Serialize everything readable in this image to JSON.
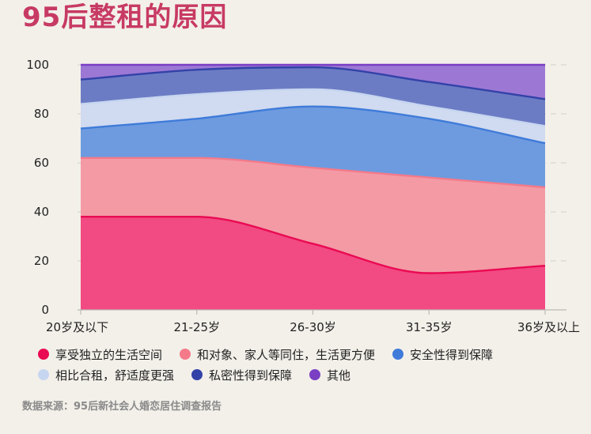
{
  "title": "95后整租的原因",
  "source": "数据来源：95后新社会人婚恋居住调查报告",
  "chart_data": {
    "type": "area",
    "stacked": true,
    "categories": [
      "20岁及以下",
      "21-25岁",
      "26-30岁",
      "31-35岁",
      "36岁及以上"
    ],
    "ylim": [
      0,
      100
    ],
    "yticks": [
      0,
      20,
      40,
      60,
      80,
      100
    ],
    "grid": true,
    "legend_position": "bottom",
    "series": [
      {
        "name": "享受独立的生活空间",
        "values": [
          38,
          38,
          27,
          15,
          18
        ],
        "color": "#ea0a53",
        "fill": "#f24a82"
      },
      {
        "name": "和对象、家人等同住，生活更方便",
        "values": [
          24,
          24,
          31,
          39,
          32
        ],
        "color": "#f47a8a",
        "fill": "#f39aa5"
      },
      {
        "name": "安全性得到保障",
        "values": [
          12,
          16,
          25,
          24,
          18
        ],
        "color": "#3f7bd9",
        "fill": "#6e9bdf"
      },
      {
        "name": "相比合租，舒适度更强",
        "values": [
          10,
          10,
          7,
          5,
          7
        ],
        "color": "#c7d6f0",
        "fill": "#d0daf0"
      },
      {
        "name": "私密性得到保障",
        "values": [
          10,
          10,
          9,
          10,
          11
        ],
        "color": "#3342a8",
        "fill": "#6c7cc4"
      },
      {
        "name": "其他",
        "values": [
          6,
          2,
          1,
          7,
          14
        ],
        "color": "#7b3fc4",
        "fill": "#9c78d4"
      }
    ]
  }
}
